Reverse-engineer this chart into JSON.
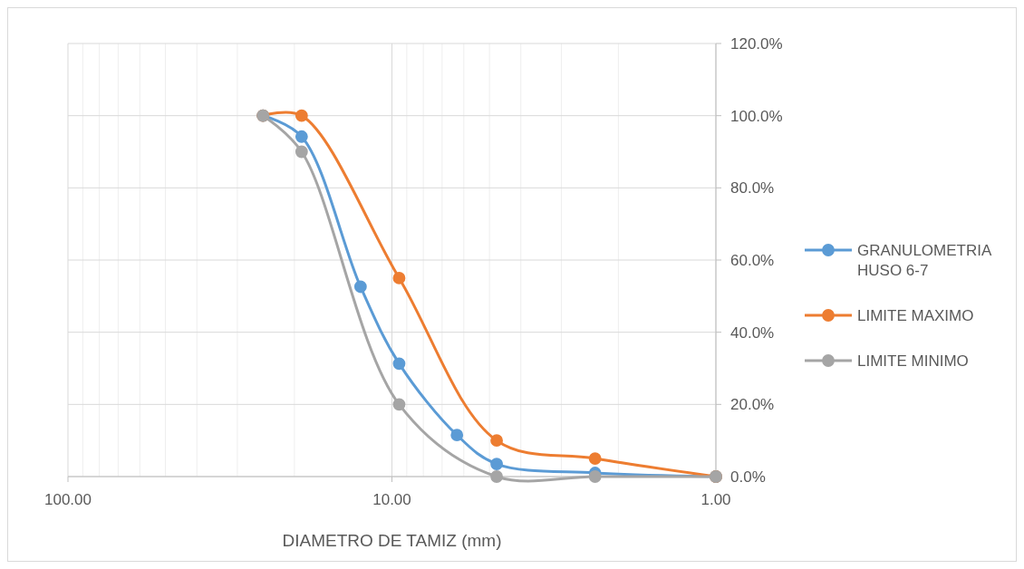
{
  "chart_data": {
    "type": "line",
    "xlabel": "DIAMETRO DE TAMIZ (mm)",
    "log": "x",
    "xlim": [
      100,
      1
    ],
    "ylim": [
      0,
      120
    ],
    "xticks": [
      {
        "value": 100,
        "label": "100.00"
      },
      {
        "value": 90,
        "label": null
      },
      {
        "value": 80,
        "label": null
      },
      {
        "value": 70,
        "label": null
      },
      {
        "value": 60,
        "label": null
      },
      {
        "value": 50,
        "label": null
      },
      {
        "value": 40,
        "label": null
      },
      {
        "value": 30,
        "label": null
      },
      {
        "value": 20,
        "label": null
      },
      {
        "value": 10,
        "label": "10.00"
      },
      {
        "value": 9,
        "label": null
      },
      {
        "value": 8,
        "label": null
      },
      {
        "value": 7,
        "label": null
      },
      {
        "value": 6,
        "label": null
      },
      {
        "value": 5,
        "label": null
      },
      {
        "value": 4,
        "label": null
      },
      {
        "value": 3,
        "label": null
      },
      {
        "value": 2,
        "label": null
      },
      {
        "value": 1,
        "label": "1.00"
      }
    ],
    "yticks": [
      {
        "value": 0,
        "label": "0.0%"
      },
      {
        "value": 20,
        "label": "20.0%"
      },
      {
        "value": 40,
        "label": "40.0%"
      },
      {
        "value": 60,
        "label": "60.0%"
      },
      {
        "value": 80,
        "label": "80.0%"
      },
      {
        "value": 100,
        "label": "100.0%"
      },
      {
        "value": 120,
        "label": "120.0%"
      }
    ],
    "grid": true,
    "legend": "right",
    "marker": "circle",
    "line_style": "solid",
    "series": [
      {
        "name": "GRANULOMETRIA HUSO 6-7",
        "color": "#5b9bd5",
        "x": [
          25,
          19,
          12.5,
          9.5,
          6.3,
          4.75,
          2.36,
          1
        ],
        "values": [
          100,
          94.2,
          52.6,
          31.3,
          11.5,
          3.5,
          1,
          0
        ]
      },
      {
        "name": "LIMITE MAXIMO",
        "color": "#ed7d31",
        "x": [
          25,
          19,
          9.5,
          4.75,
          2.36,
          1
        ],
        "values": [
          100,
          100,
          55,
          10,
          5,
          0
        ]
      },
      {
        "name": "LIMITE MINIMO",
        "color": "#a5a5a5",
        "x": [
          25,
          19,
          9.5,
          4.75,
          2.36,
          1
        ],
        "values": [
          100,
          90,
          20,
          0,
          0,
          0
        ]
      }
    ]
  }
}
